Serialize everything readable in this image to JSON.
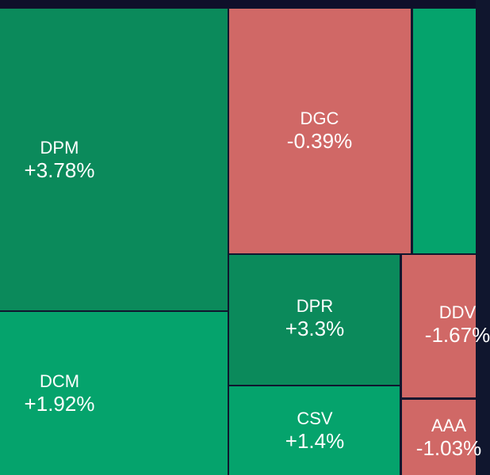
{
  "tiles": [
    {
      "name": "DPM",
      "change": "+3.78%"
    },
    {
      "name": "DCM",
      "change": "+1.92%"
    },
    {
      "name": "DGC",
      "change": "-0.39%"
    },
    {
      "name": "DPR",
      "change": "+3.3%"
    },
    {
      "name": "CSV",
      "change": "+1.4%"
    },
    {
      "name": "DDV",
      "change": "-1.67%"
    },
    {
      "name": "AAA",
      "change": "-1.03%"
    }
  ]
}
